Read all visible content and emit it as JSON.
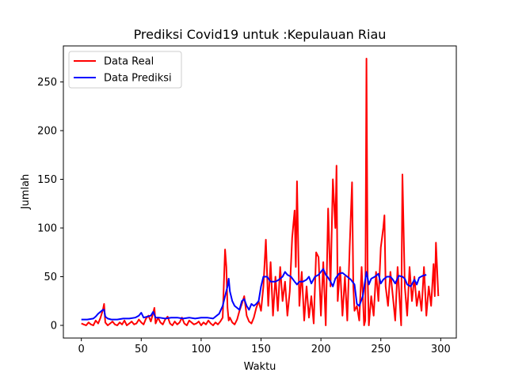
{
  "chart_data": {
    "type": "line",
    "title": "Prediksi Covid19 untuk :Kepulauan Riau",
    "xlabel": "Waktu",
    "ylabel": "Jumlah",
    "xlim": [
      -15,
      313
    ],
    "ylim": [
      -13,
      287
    ],
    "xticks": [
      0,
      50,
      100,
      150,
      200,
      250,
      300
    ],
    "yticks": [
      0,
      50,
      100,
      150,
      200,
      250
    ],
    "grid": false,
    "legend_position": "top-left",
    "series": [
      {
        "name": "Data Real",
        "color": "#ff0000",
        "x": [
          0,
          2,
          4,
          6,
          8,
          10,
          12,
          14,
          16,
          18,
          19,
          20,
          22,
          24,
          26,
          28,
          30,
          32,
          34,
          36,
          38,
          40,
          42,
          44,
          46,
          48,
          50,
          52,
          54,
          56,
          58,
          60,
          61,
          62,
          64,
          66,
          68,
          70,
          72,
          74,
          76,
          78,
          80,
          82,
          84,
          86,
          88,
          90,
          92,
          94,
          96,
          98,
          100,
          102,
          104,
          106,
          108,
          110,
          112,
          114,
          116,
          118,
          120,
          121,
          122,
          123,
          124,
          126,
          128,
          130,
          132,
          134,
          136,
          138,
          140,
          142,
          144,
          146,
          148,
          150,
          152,
          154,
          156,
          158,
          160,
          162,
          164,
          166,
          168,
          170,
          172,
          174,
          176,
          178,
          179,
          180,
          182,
          184,
          186,
          188,
          190,
          192,
          194,
          196,
          198,
          200,
          202,
          204,
          206,
          208,
          210,
          212,
          213,
          214,
          216,
          218,
          220,
          222,
          224,
          226,
          227,
          228,
          230,
          232,
          234,
          236,
          237,
          238,
          239,
          240,
          242,
          244,
          246,
          248,
          250,
          252,
          253,
          254,
          256,
          258,
          260,
          262,
          264,
          266,
          267,
          268,
          270,
          272,
          274,
          276,
          278,
          280,
          282,
          284,
          286,
          288,
          290,
          292,
          294,
          295,
          296,
          298
        ],
        "y": [
          2,
          1,
          0,
          3,
          1,
          0,
          5,
          2,
          8,
          16,
          22,
          3,
          0,
          2,
          4,
          1,
          0,
          3,
          1,
          5,
          0,
          2,
          4,
          1,
          2,
          6,
          3,
          1,
          7,
          10,
          4,
          13,
          18,
          2,
          8,
          3,
          1,
          6,
          9,
          2,
          0,
          4,
          1,
          3,
          8,
          2,
          0,
          5,
          3,
          1,
          2,
          4,
          0,
          3,
          1,
          5,
          2,
          0,
          3,
          1,
          4,
          8,
          78,
          60,
          18,
          5,
          8,
          3,
          1,
          6,
          15,
          22,
          30,
          10,
          4,
          2,
          8,
          18,
          25,
          15,
          40,
          88,
          20,
          65,
          10,
          50,
          15,
          60,
          25,
          45,
          10,
          35,
          90,
          118,
          60,
          148,
          20,
          55,
          5,
          40,
          8,
          30,
          2,
          75,
          70,
          10,
          65,
          0,
          120,
          40,
          150,
          100,
          164,
          25,
          60,
          10,
          50,
          5,
          80,
          147,
          40,
          15,
          20,
          5,
          60,
          0,
          5,
          274,
          50,
          0,
          30,
          10,
          55,
          25,
          80,
          100,
          113,
          40,
          20,
          55,
          30,
          5,
          60,
          20,
          0,
          155,
          40,
          10,
          60,
          25,
          50,
          20,
          35,
          15,
          60,
          10,
          40,
          20,
          63,
          30,
          85,
          30
        ],
        "width": 2
      },
      {
        "name": "Data Prediksi",
        "color": "#0000ff",
        "x": [
          0,
          5,
          10,
          12,
          14,
          16,
          18,
          19,
          20,
          22,
          25,
          30,
          35,
          40,
          45,
          48,
          50,
          52,
          55,
          58,
          60,
          62,
          65,
          70,
          75,
          80,
          85,
          90,
          95,
          100,
          105,
          110,
          115,
          118,
          120,
          122,
          123,
          124,
          126,
          128,
          130,
          132,
          134,
          136,
          138,
          140,
          142,
          144,
          146,
          148,
          150,
          152,
          155,
          158,
          160,
          162,
          165,
          168,
          170,
          172,
          175,
          178,
          180,
          182,
          185,
          188,
          190,
          192,
          195,
          198,
          200,
          202,
          204,
          206,
          208,
          210,
          212,
          215,
          218,
          220,
          222,
          225,
          228,
          230,
          232,
          235,
          238,
          240,
          242,
          245,
          248,
          250,
          252,
          255,
          258,
          260,
          262,
          265,
          268,
          270,
          272,
          275,
          278,
          280,
          282,
          285,
          288
        ],
        "y": [
          6,
          6,
          7,
          9,
          12,
          14,
          16,
          16,
          9,
          7,
          6,
          6,
          7,
          7,
          8,
          10,
          13,
          8,
          9,
          10,
          14,
          8,
          8,
          7,
          8,
          8,
          7,
          8,
          7,
          8,
          8,
          7,
          12,
          20,
          30,
          40,
          48,
          35,
          25,
          20,
          18,
          16,
          25,
          27,
          20,
          16,
          22,
          20,
          22,
          25,
          40,
          50,
          50,
          45,
          45,
          45,
          47,
          50,
          55,
          52,
          50,
          45,
          42,
          45,
          45,
          47,
          50,
          43,
          50,
          52,
          55,
          58,
          52,
          49,
          45,
          40,
          48,
          53,
          54,
          52,
          50,
          47,
          42,
          22,
          20,
          30,
          55,
          42,
          48,
          50,
          53,
          43,
          47,
          50,
          50,
          47,
          43,
          51,
          50,
          48,
          42,
          40,
          47,
          42,
          49,
          51,
          52
        ],
        "width": 2
      }
    ]
  }
}
